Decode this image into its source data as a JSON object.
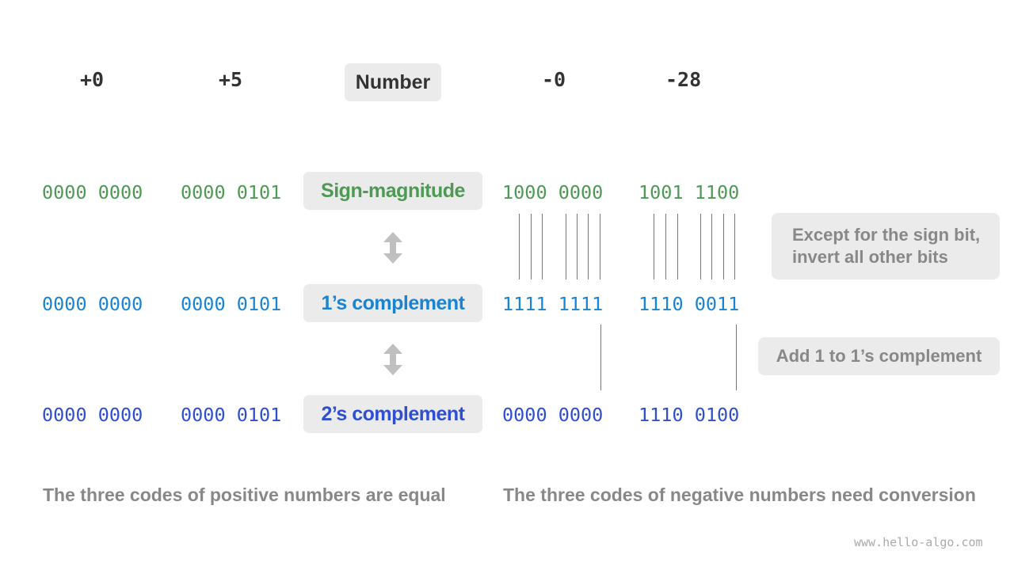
{
  "columns": [
    "+0",
    "+5",
    "Number",
    "-0",
    "-28"
  ],
  "rows": [
    {
      "label": "Sign-magnitude",
      "values": [
        "0000 0000",
        "0000 0101",
        "1000 0000",
        "1001 1100"
      ],
      "color": "#4e9a55"
    },
    {
      "label": "1’s complement",
      "values": [
        "0000 0000",
        "0000 0101",
        "1111 1111",
        "1110 0011"
      ],
      "color": "#1a84d0"
    },
    {
      "label": "2’s complement",
      "values": [
        "0000 0000",
        "0000 0101",
        "0000 0000",
        "1110 0100"
      ],
      "color": "#2f4fd0"
    }
  ],
  "notes": {
    "invert": "Except for the sign bit,\ninvert all other bits",
    "add": "Add 1 to 1’s complement"
  },
  "footer": {
    "positive": "The three codes of positive numbers are equal",
    "negative": "The three codes of negative numbers need conversion"
  },
  "watermark": "www.hello-algo.com"
}
